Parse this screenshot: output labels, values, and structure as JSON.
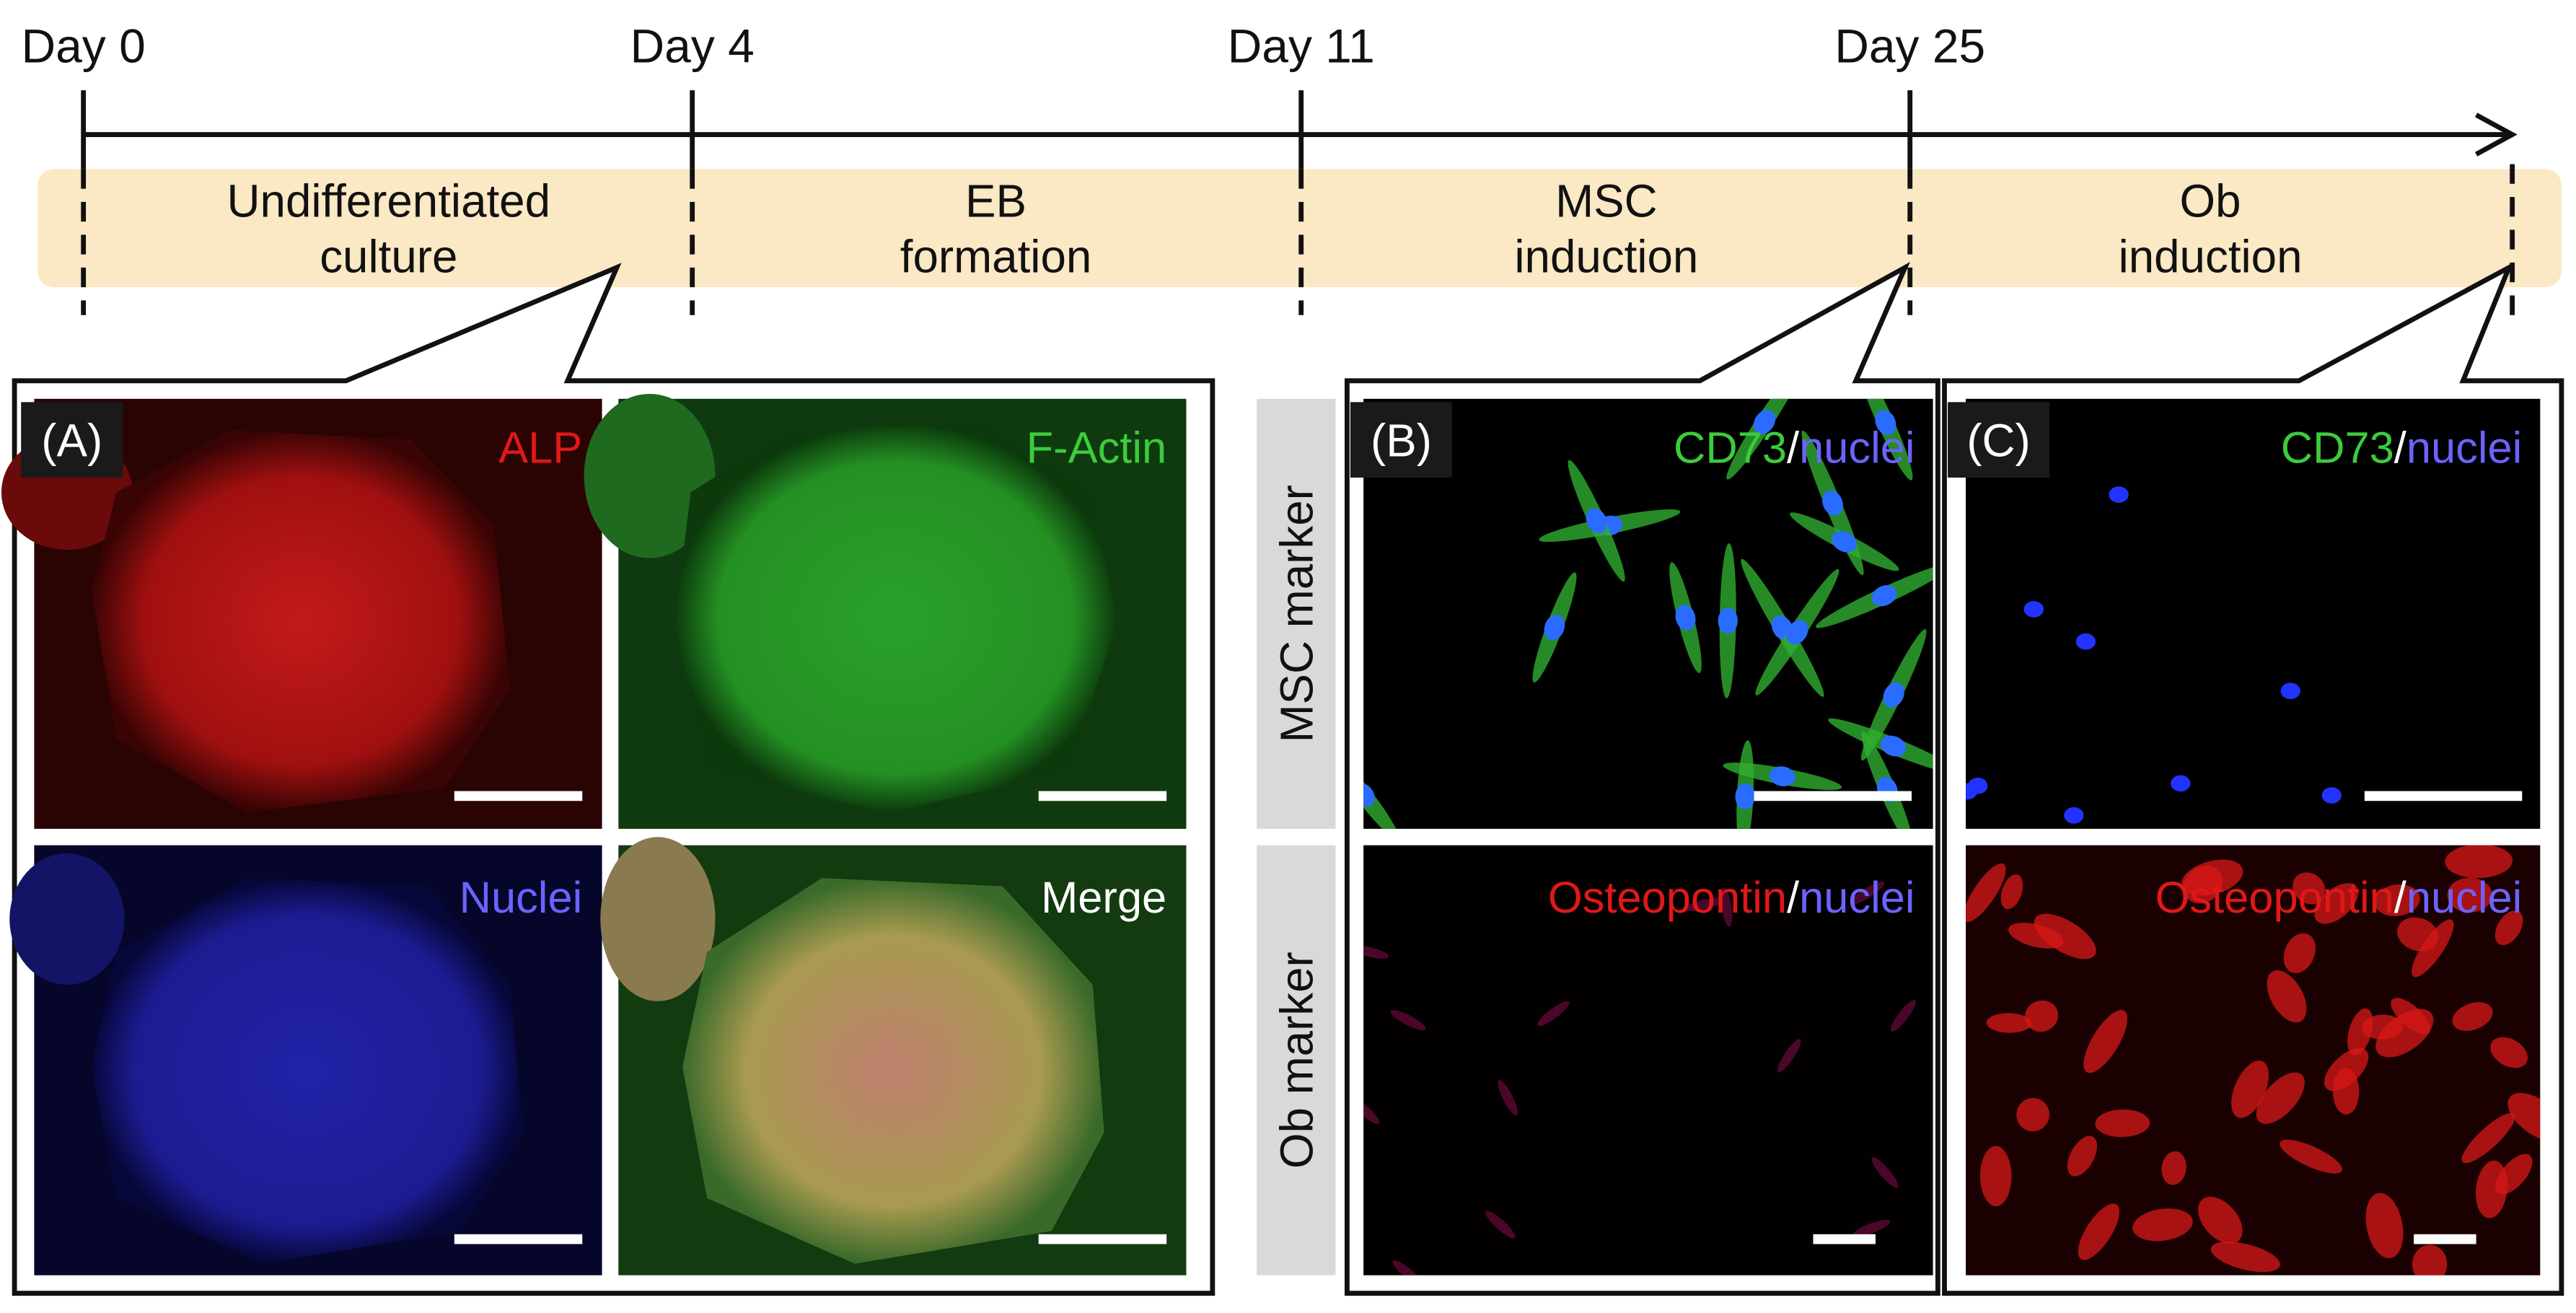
{
  "timeline": {
    "days": [
      "Day 0",
      "Day 4",
      "Day 11",
      "Day 25"
    ],
    "stages": [
      {
        "lines": [
          "Undifferentiated",
          "culture"
        ]
      },
      {
        "lines": [
          "EB",
          "formation"
        ]
      },
      {
        "lines": [
          "MSC",
          "induction"
        ]
      },
      {
        "lines": [
          "Ob",
          "induction"
        ]
      }
    ]
  },
  "panels": [
    {
      "label": "(A)",
      "images": [
        {
          "stain": [
            "ALP"
          ]
        },
        {
          "stain": [
            "F-Actin"
          ]
        },
        {
          "stain": [
            "Nuclei"
          ]
        },
        {
          "stain": [
            "Merge"
          ]
        }
      ]
    },
    {
      "label": "(B)",
      "images": [
        {
          "stain": [
            "CD73",
            "/",
            "nuclei"
          ]
        },
        {
          "stain": [
            "Osteopontin",
            "/",
            "nuclei"
          ]
        }
      ]
    },
    {
      "label": "(C)",
      "images": [
        {
          "stain": [
            "CD73",
            "/",
            "nuclei"
          ]
        },
        {
          "stain": [
            "Osteopontin",
            "/",
            "nuclei"
          ]
        }
      ]
    }
  ],
  "row_labels": [
    "MSC marker",
    "Ob marker"
  ]
}
